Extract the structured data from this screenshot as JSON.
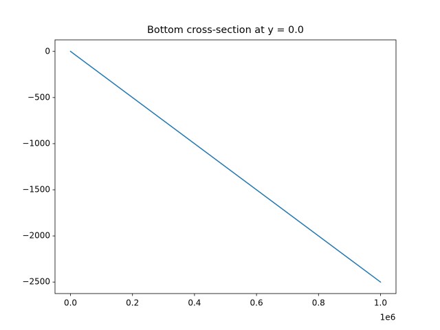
{
  "chart_data": {
    "type": "line",
    "title": "Bottom cross-section at y = 0.0",
    "x": [
      0,
      1000000
    ],
    "series": [
      {
        "color": "#1f77b4",
        "values": [
          0,
          -2500
        ]
      }
    ],
    "xlim": [
      -50000,
      1050000
    ],
    "xticks": [
      {
        "value": 0,
        "label": "0.0"
      },
      {
        "value": 200000,
        "label": "0.2"
      },
      {
        "value": 400000,
        "label": "0.4"
      },
      {
        "value": 600000,
        "label": "0.6"
      },
      {
        "value": 800000,
        "label": "0.8"
      },
      {
        "value": 1000000,
        "label": "1.0"
      }
    ],
    "x_offset_label": "1e6",
    "ylim": [
      -2625,
      125
    ],
    "yticks": [
      0,
      {
        "value": -500,
        "label": "−500"
      },
      {
        "value": -1000,
        "label": "−1000"
      },
      {
        "value": -1500,
        "label": "−1500"
      },
      {
        "value": -2000,
        "label": "−2000"
      },
      {
        "value": -2500,
        "label": "−2500"
      }
    ],
    "grid": false
  }
}
